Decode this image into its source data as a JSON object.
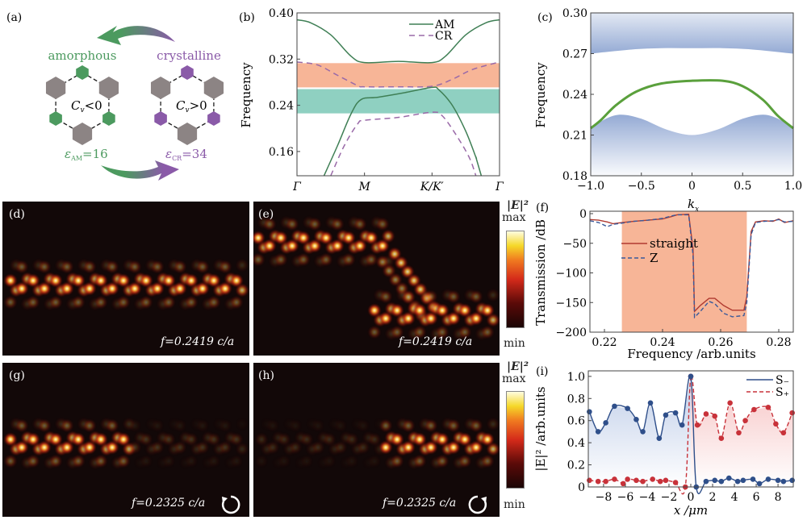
{
  "panel_labels": {
    "a": "(a)",
    "b": "(b)",
    "c": "(c)",
    "d": "(d)",
    "e": "(e)",
    "f": "(f)",
    "g": "(g)",
    "h": "(h)",
    "i": "(i)"
  },
  "panel_a": {
    "top_left": "amorphous",
    "top_right": "crystalline",
    "cv_left": "C",
    "cv_left_sub": "v",
    "cv_left_rel": "<0",
    "cv_right": "C",
    "cv_right_sub": "v",
    "cv_right_rel": ">0",
    "eps_left": "ε",
    "eps_left_sub": "AM",
    "eps_left_val": "=16",
    "eps_right": "ε",
    "eps_right_sub": "CR",
    "eps_right_val": "=34",
    "colors": {
      "amorphous": "#4c9a5f",
      "crystalline": "#8a5aa8",
      "rod": "#8c8484"
    }
  },
  "field_maps": {
    "d": {
      "freq": "f=0.2419 c/a"
    },
    "e": {
      "freq": "f=0.2419 c/a"
    },
    "g": {
      "freq": "f=0.2325 c/a",
      "icon": "clockwise-arrow-icon"
    },
    "h": {
      "freq": "f=0.2325 c/a",
      "icon": "counterclockwise-arrow-icon"
    },
    "colorbar": {
      "title": "|E|²",
      "max": "max",
      "min": "min"
    }
  },
  "chart_data": [
    {
      "id": "b",
      "type": "line",
      "ylabel": "Frequency",
      "xlabel": "",
      "ylim": [
        0.118,
        0.4
      ],
      "yticks": [
        "0.16",
        "0.24",
        "0.32",
        "0.40"
      ],
      "xtick_labels": [
        "Γ",
        "M",
        "K/K′",
        "Γ"
      ],
      "legend": "top-right",
      "bands": [
        {
          "from": 0.271,
          "to": 0.313,
          "color": "#f7b597"
        },
        {
          "from": 0.226,
          "to": 0.268,
          "color": "#8fd0c1"
        }
      ],
      "series": [
        {
          "name": "AM",
          "style": "solid",
          "color": "#3f7f55",
          "curves": [
            [
              [
                0,
                0.388
              ],
              [
                0.2,
                0.383
              ],
              [
                0.5,
                0.362
              ],
              [
                0.8,
                0.325
              ],
              [
                1,
                0.314
              ],
              [
                1.5,
                0.316
              ],
              [
                2,
                0.314
              ],
              [
                2.2,
                0.325
              ],
              [
                2.5,
                0.362
              ],
              [
                2.8,
                0.383
              ],
              [
                3,
                0.388
              ]
            ],
            [
              [
                0.4,
                0.118
              ],
              [
                0.6,
                0.17
              ],
              [
                0.8,
                0.225
              ],
              [
                0.95,
                0.25
              ],
              [
                1.2,
                0.254
              ],
              [
                1.6,
                0.262
              ],
              [
                2,
                0.271
              ],
              [
                2.1,
                0.267
              ],
              [
                2.3,
                0.24
              ],
              [
                2.5,
                0.195
              ],
              [
                2.65,
                0.15
              ],
              [
                2.65,
                0.15
              ],
              [
                2.73,
                0.118
              ]
            ]
          ]
        },
        {
          "name": "CR",
          "style": "dashed",
          "color": "#9a6aa8",
          "curves": [
            [
              [
                0,
                0.315
              ],
              [
                0.3,
                0.31
              ],
              [
                0.6,
                0.292
              ],
              [
                0.9,
                0.274
              ],
              [
                1,
                0.272
              ],
              [
                1.5,
                0.272
              ],
              [
                2,
                0.273
              ],
              [
                2.3,
                0.285
              ],
              [
                2.6,
                0.302
              ],
              [
                3,
                0.315
              ]
            ],
            [
              [
                0.5,
                0.118
              ],
              [
                0.7,
                0.17
              ],
              [
                0.9,
                0.208
              ],
              [
                1,
                0.214
              ],
              [
                1.5,
                0.219
              ],
              [
                2,
                0.228
              ],
              [
                2.15,
                0.222
              ],
              [
                2.35,
                0.19
              ],
              [
                2.55,
                0.15
              ],
              [
                2.65,
                0.118
              ]
            ]
          ]
        }
      ]
    },
    {
      "id": "c",
      "type": "area",
      "ylabel": "Frequency",
      "xlabel": "k",
      "xlabel_sub": "x",
      "xlim": [
        -1,
        1
      ],
      "ylim": [
        0.18,
        0.3
      ],
      "xticks": [
        "-1.0",
        "-0.5",
        "0",
        "0.5",
        "1.0"
      ],
      "yticks": [
        "0.18",
        "0.21",
        "0.24",
        "0.27",
        "0.30"
      ],
      "upper_band_edge": [
        [
          -1,
          0.27
        ],
        [
          -0.6,
          0.273
        ],
        [
          -0.3,
          0.274
        ],
        [
          0,
          0.274
        ],
        [
          0.3,
          0.274
        ],
        [
          0.6,
          0.273
        ],
        [
          1,
          0.27
        ]
      ],
      "lower_band_edge": [
        [
          -1,
          0.215
        ],
        [
          -0.85,
          0.222
        ],
        [
          -0.7,
          0.225
        ],
        [
          -0.5,
          0.222
        ],
        [
          -0.25,
          0.214
        ],
        [
          0,
          0.21
        ],
        [
          0.25,
          0.214
        ],
        [
          0.5,
          0.222
        ],
        [
          0.7,
          0.225
        ],
        [
          0.85,
          0.222
        ],
        [
          1,
          0.215
        ]
      ],
      "band_color": "#8fa6d2",
      "edge_state": {
        "color": "#5aa03c",
        "points": [
          [
            -1,
            0.215
          ],
          [
            -0.9,
            0.221
          ],
          [
            -0.75,
            0.232
          ],
          [
            -0.55,
            0.242
          ],
          [
            -0.3,
            0.248
          ],
          [
            0,
            0.25
          ],
          [
            0.3,
            0.25
          ],
          [
            0.5,
            0.246
          ],
          [
            0.7,
            0.236
          ],
          [
            0.85,
            0.224
          ],
          [
            1,
            0.215
          ]
        ]
      }
    },
    {
      "id": "f",
      "type": "line",
      "ylabel": "Transmission /dB",
      "xlabel": "Frequency /arb.units",
      "xlim": [
        0.215,
        0.285
      ],
      "ylim": [
        -200,
        5
      ],
      "xticks": [
        "0.22",
        "0.24",
        "0.26",
        "0.28"
      ],
      "yticks": [
        "0",
        "-50",
        "-100",
        "-150",
        "-200"
      ],
      "shaded_range": [
        0.226,
        0.269
      ],
      "shade_color": "#f7b597",
      "legend": "center-left",
      "series": [
        {
          "name": "straight",
          "style": "solid",
          "color": "#b03a30",
          "points": [
            [
              0.215,
              -10
            ],
            [
              0.218,
              -11
            ],
            [
              0.221,
              -14
            ],
            [
              0.223,
              -17
            ],
            [
              0.226,
              -15
            ],
            [
              0.23,
              -13
            ],
            [
              0.235,
              -11
            ],
            [
              0.24,
              -9
            ],
            [
              0.243,
              -5
            ],
            [
              0.245,
              -2
            ],
            [
              0.249,
              -1
            ],
            [
              0.2505,
              -60
            ],
            [
              0.251,
              -165
            ],
            [
              0.253,
              -155
            ],
            [
              0.256,
              -143
            ],
            [
              0.258,
              -143
            ],
            [
              0.261,
              -155
            ],
            [
              0.264,
              -163
            ],
            [
              0.268,
              -163
            ],
            [
              0.269,
              -140
            ],
            [
              0.2705,
              -30
            ],
            [
              0.272,
              -14
            ],
            [
              0.275,
              -12
            ],
            [
              0.278,
              -13
            ],
            [
              0.28,
              -9
            ],
            [
              0.282,
              -15
            ],
            [
              0.285,
              -12
            ]
          ]
        },
        {
          "name": "Z",
          "style": "dashed",
          "color": "#3a5a9a",
          "points": [
            [
              0.215,
              -12
            ],
            [
              0.218,
              -15
            ],
            [
              0.221,
              -22
            ],
            [
              0.223,
              -18
            ],
            [
              0.226,
              -16
            ],
            [
              0.23,
              -13
            ],
            [
              0.235,
              -11
            ],
            [
              0.24,
              -8
            ],
            [
              0.243,
              -4
            ],
            [
              0.245,
              -2
            ],
            [
              0.249,
              -2
            ],
            [
              0.2505,
              -70
            ],
            [
              0.251,
              -175
            ],
            [
              0.253,
              -165
            ],
            [
              0.256,
              -148
            ],
            [
              0.258,
              -152
            ],
            [
              0.261,
              -168
            ],
            [
              0.264,
              -174
            ],
            [
              0.268,
              -172
            ],
            [
              0.269,
              -150
            ],
            [
              0.2705,
              -35
            ],
            [
              0.272,
              -15
            ],
            [
              0.275,
              -13
            ],
            [
              0.278,
              -12
            ],
            [
              0.28,
              -10
            ],
            [
              0.282,
              -14
            ],
            [
              0.285,
              -13
            ]
          ]
        }
      ]
    },
    {
      "id": "i",
      "type": "line",
      "ylabel": "|E|² /arb.units",
      "xlabel": "x /μm",
      "xlim": [
        -9.4,
        9.4
      ],
      "ylim": [
        0,
        1.05
      ],
      "xticks": [
        "-8",
        "-6",
        "-4",
        "-2",
        "0",
        "2",
        "4",
        "6",
        "8"
      ],
      "yticks": [
        "0",
        "0.2",
        "0.4",
        "0.6",
        "0.8",
        "1.0"
      ],
      "legend": "top-right",
      "series": [
        {
          "name": "S₋",
          "style": "solid",
          "color": "#2f4f8a",
          "fill": "#b8c8e6",
          "points": [
            [
              -9.3,
              0.68
            ],
            [
              -8.5,
              0.5
            ],
            [
              -7.8,
              0.58
            ],
            [
              -7,
              0.73
            ],
            [
              -5.8,
              0.71
            ],
            [
              -5,
              0.61
            ],
            [
              -4.4,
              0.5
            ],
            [
              -3.7,
              0.76
            ],
            [
              -2.9,
              0.44
            ],
            [
              -2.3,
              0.65
            ],
            [
              -1.4,
              0.67
            ],
            [
              -0.8,
              0.56
            ],
            [
              0,
              1.0
            ],
            [
              0.5,
              0.0
            ],
            [
              1.4,
              0.05
            ],
            [
              2.2,
              0.06
            ],
            [
              2.8,
              0.05
            ],
            [
              3.5,
              0.08
            ],
            [
              4.3,
              0.05
            ],
            [
              4.8,
              0.06
            ],
            [
              5.7,
              0.07
            ],
            [
              6.3,
              0.03
            ],
            [
              7.1,
              0.07
            ],
            [
              8,
              0.06
            ],
            [
              8.5,
              0.05
            ],
            [
              9.3,
              0.06
            ]
          ]
        },
        {
          "name": "S₊",
          "style": "dashed",
          "color": "#c8323a",
          "fill": "#f5bcbc",
          "points": [
            [
              -9.3,
              0.06
            ],
            [
              -8.5,
              0.05
            ],
            [
              -7.8,
              0.05
            ],
            [
              -7,
              0.07
            ],
            [
              -6.2,
              0.03
            ],
            [
              -5.8,
              0.07
            ],
            [
              -5,
              0.06
            ],
            [
              -4.4,
              0.05
            ],
            [
              -3.5,
              0.07
            ],
            [
              -2.8,
              0.05
            ],
            [
              -2.3,
              0.06
            ],
            [
              -1.4,
              0.04
            ],
            [
              -0.5,
              0.0
            ],
            [
              0,
              1.0
            ],
            [
              0.6,
              0.56
            ],
            [
              1.4,
              0.66
            ],
            [
              2.2,
              0.64
            ],
            [
              2.8,
              0.44
            ],
            [
              3.6,
              0.76
            ],
            [
              4.4,
              0.49
            ],
            [
              5,
              0.6
            ],
            [
              5.8,
              0.7
            ],
            [
              7.1,
              0.72
            ],
            [
              7.8,
              0.57
            ],
            [
              8.5,
              0.49
            ],
            [
              9.3,
              0.67
            ]
          ]
        }
      ]
    }
  ]
}
